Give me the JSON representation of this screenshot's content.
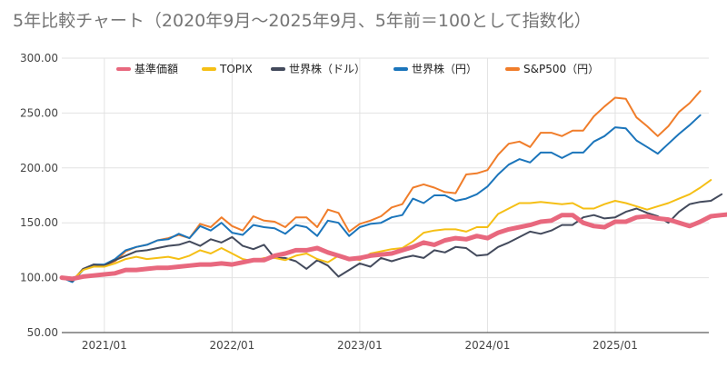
{
  "chart_data": {
    "type": "line",
    "title": "5年比較チャート（2020年9月〜2025年9月、5年前＝100として指数化）",
    "xlabel": "",
    "ylabel": "",
    "ylim": [
      50,
      300
    ],
    "y_ticks": [
      "50.00",
      "100.00",
      "150.00",
      "200.00",
      "250.00",
      "300.00"
    ],
    "x_ticks": [
      "2021/01",
      "2022/01",
      "2023/01",
      "2024/01",
      "2025/01"
    ],
    "x_start": "2020/09",
    "grid": true,
    "legend_position": "top",
    "series": [
      {
        "name": "基準価額",
        "color": "#e8687e",
        "values": [
          100,
          99,
          101,
          102,
          103,
          104,
          107,
          107,
          108,
          109,
          109,
          110,
          111,
          112,
          112,
          113,
          112,
          114,
          116,
          116,
          120,
          122,
          125,
          125,
          127,
          123,
          120,
          117,
          118,
          120,
          121,
          122,
          125,
          128,
          132,
          130,
          134,
          136,
          135,
          138,
          136,
          141,
          144,
          146,
          148,
          151,
          152,
          157,
          157,
          150,
          147,
          146,
          151,
          151,
          155,
          156,
          154,
          153,
          150,
          147,
          151,
          156,
          157,
          158
        ]
      },
      {
        "name": "TOPIX",
        "color": "#f5bf15",
        "values": [
          100,
          98,
          107,
          110,
          110,
          113,
          117,
          119,
          117,
          118,
          119,
          117,
          120,
          125,
          122,
          127,
          122,
          117,
          115,
          118,
          118,
          116,
          120,
          122,
          117,
          114,
          120,
          118,
          116,
          122,
          124,
          126,
          127,
          133,
          141,
          143,
          144,
          144,
          142,
          146,
          146,
          158,
          163,
          168,
          168,
          169,
          168,
          167,
          168,
          163,
          163,
          167,
          170,
          168,
          165,
          162,
          165,
          168,
          172,
          176,
          182,
          189
        ]
      },
      {
        "name": "世界株（ドル）",
        "color": "#434a5c",
        "values": [
          100,
          97,
          108,
          112,
          111,
          116,
          120,
          124,
          125,
          127,
          129,
          130,
          133,
          129,
          135,
          132,
          137,
          129,
          126,
          130,
          118,
          118,
          115,
          108,
          116,
          111,
          101,
          107,
          113,
          110,
          118,
          115,
          118,
          120,
          118,
          125,
          123,
          128,
          127,
          120,
          121,
          128,
          132,
          137,
          142,
          140,
          143,
          148,
          148,
          155,
          157,
          154,
          155,
          160,
          163,
          159,
          156,
          150,
          160,
          167,
          169,
          170,
          176
        ]
      },
      {
        "name": "世界株（円）",
        "color": "#1b75bb",
        "values": [
          100,
          96,
          107,
          112,
          112,
          117,
          125,
          128,
          130,
          134,
          135,
          140,
          136,
          147,
          143,
          150,
          141,
          139,
          148,
          146,
          145,
          140,
          148,
          146,
          138,
          152,
          150,
          138,
          146,
          149,
          150,
          155,
          157,
          172,
          168,
          175,
          175,
          170,
          172,
          176,
          183,
          194,
          203,
          208,
          205,
          214,
          214,
          209,
          214,
          214,
          224,
          229,
          237,
          236,
          225,
          219,
          213,
          222,
          231,
          239,
          248
        ]
      },
      {
        "name": "S&P500（円）",
        "color": "#f07d2a",
        "values": [
          100,
          97,
          108,
          111,
          111,
          115,
          124,
          128,
          130,
          134,
          136,
          139,
          136,
          149,
          146,
          155,
          147,
          143,
          156,
          152,
          151,
          146,
          155,
          155,
          146,
          162,
          159,
          142,
          149,
          152,
          156,
          164,
          167,
          182,
          185,
          182,
          178,
          177,
          194,
          195,
          198,
          212,
          222,
          224,
          219,
          232,
          232,
          229,
          234,
          234,
          247,
          256,
          264,
          263,
          246,
          238,
          229,
          238,
          251,
          259,
          270
        ]
      }
    ]
  }
}
